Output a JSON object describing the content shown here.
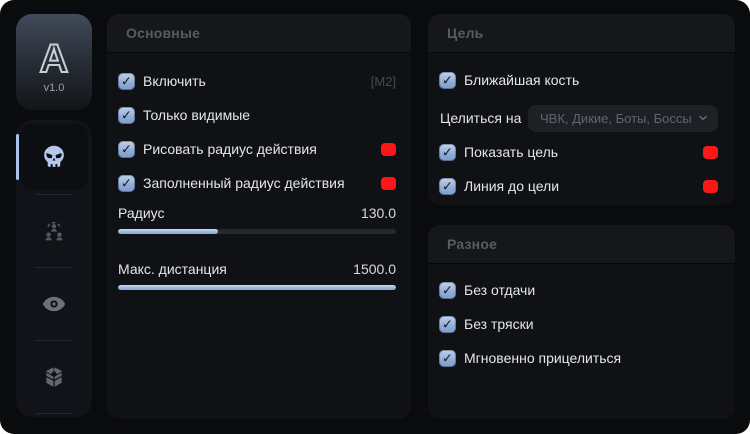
{
  "colors": {
    "accent": "#a9c3ea",
    "red": "#fb1717",
    "window_bg": "#0a0b0d",
    "panel_bg": "#101114"
  },
  "sidebar": {
    "logo_letter": "A",
    "version": "v1.0",
    "nav": [
      {
        "name": "aimbot",
        "icon": "skull-icon",
        "active": true
      },
      {
        "name": "players",
        "icon": "crowd-icon",
        "active": false
      },
      {
        "name": "visuals",
        "icon": "eye-icon",
        "active": false
      },
      {
        "name": "loot",
        "icon": "box-icon",
        "active": false
      }
    ]
  },
  "main_panel": {
    "title": "Основные",
    "checkboxes": [
      {
        "label": "Включить",
        "checked": true,
        "hotkey": "[M2]"
      },
      {
        "label": "Только видимые",
        "checked": true
      },
      {
        "label": "Рисовать радиус действия",
        "checked": true,
        "color": "#fb1717"
      },
      {
        "label": "Заполненный радиус действия",
        "checked": true,
        "color": "#fb1717"
      }
    ],
    "sliders": [
      {
        "label": "Радиус",
        "value": "130.0",
        "percent": 36
      },
      {
        "label": "Макс. дистанция",
        "value": "1500.0",
        "percent": 100
      }
    ]
  },
  "target_panel": {
    "title": "Цель",
    "checkbox_top": {
      "label": "Ближайшая кость",
      "checked": true
    },
    "dropdown": {
      "label": "Целиться на",
      "value": "ЧВК, Дикие, Боты, Боссы"
    },
    "checkboxes": [
      {
        "label": "Показать цель",
        "checked": true,
        "color": "#fb1717"
      },
      {
        "label": "Линия до цели",
        "checked": true,
        "color": "#fb1717"
      }
    ]
  },
  "misc_panel": {
    "title": "Разное",
    "checkboxes": [
      {
        "label": "Без отдачи",
        "checked": true
      },
      {
        "label": "Без тряски",
        "checked": true
      },
      {
        "label": "Мгновенно прицелиться",
        "checked": true
      }
    ]
  }
}
